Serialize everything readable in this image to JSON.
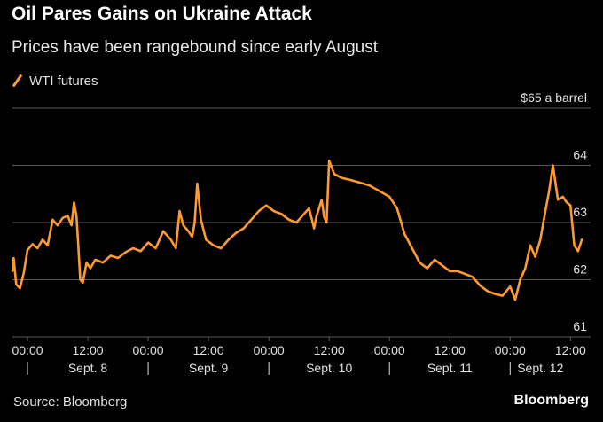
{
  "header": {
    "title": "Oil Pares Gains on Ukraine Attack",
    "subtitle": "Prices have been rangebound since early August"
  },
  "footer": {
    "source": "Source: Bloomberg",
    "brand": "Bloomberg"
  },
  "colors": {
    "line": "#ff9a2e",
    "grid": "#5a5a5a",
    "text": "#e0e0e0",
    "background": "#000000"
  },
  "chart_data": {
    "type": "line",
    "title": "Oil Pares Gains on Ukraine Attack",
    "subtitle": "Prices have been rangebound since early August",
    "ylabel": "",
    "ylim": [
      61,
      65
    ],
    "yticks": [
      {
        "value": 61,
        "label": "61"
      },
      {
        "value": 62,
        "label": "62"
      },
      {
        "value": 63,
        "label": "63"
      },
      {
        "value": 64,
        "label": "64"
      },
      {
        "value": 65,
        "label": "$65 a barrel"
      }
    ],
    "xlim": [
      "Sept. 7 21:00",
      "Sept. 12 16:00"
    ],
    "xticks": [
      {
        "x": "Sept. 8 00:00",
        "label": "00:00"
      },
      {
        "x": "Sept. 8 12:00",
        "label": "12:00"
      },
      {
        "x": "Sept. 9 00:00",
        "label": "00:00"
      },
      {
        "x": "Sept. 9 12:00",
        "label": "12:00"
      },
      {
        "x": "Sept. 10 00:00",
        "label": "00:00"
      },
      {
        "x": "Sept. 10 12:00",
        "label": "12:00"
      },
      {
        "x": "Sept. 11 00:00",
        "label": "00:00"
      },
      {
        "x": "Sept. 11 12:00",
        "label": "12:00"
      },
      {
        "x": "Sept. 12 00:00",
        "label": "00:00"
      },
      {
        "x": "Sept. 12 12:00",
        "label": "12:00"
      }
    ],
    "day_labels": [
      {
        "x": "Sept. 8 12:00",
        "label": "Sept. 8"
      },
      {
        "x": "Sept. 9 12:00",
        "label": "Sept. 9"
      },
      {
        "x": "Sept. 10 12:00",
        "label": "Sept. 10"
      },
      {
        "x": "Sept. 11 12:00",
        "label": "Sept. 11"
      },
      {
        "x": "Sept. 12 06:00",
        "label": "Sept. 12"
      }
    ],
    "day_separators": [
      "Sept. 8 00:00",
      "Sept. 9 00:00",
      "Sept. 10 00:00",
      "Sept. 11 00:00",
      "Sept. 12 00:00"
    ],
    "grid": true,
    "legend": "top-left",
    "series": [
      {
        "name": "WTI futures",
        "x": [
          "Sept. 7 21:00",
          "Sept. 7 21:15",
          "Sept. 7 21:45",
          "Sept. 7 22:30",
          "Sept. 7 23:15",
          "Sept. 8 00:00",
          "Sept. 8 01:00",
          "Sept. 8 02:00",
          "Sept. 8 03:00",
          "Sept. 8 04:00",
          "Sept. 8 05:00",
          "Sept. 8 06:00",
          "Sept. 8 07:00",
          "Sept. 8 08:00",
          "Sept. 8 08:45",
          "Sept. 8 09:15",
          "Sept. 8 09:45",
          "Sept. 8 10:00",
          "Sept. 8 10:30",
          "Sept. 8 11:00",
          "Sept. 8 11:45",
          "Sept. 8 12:30",
          "Sept. 8 13:30",
          "Sept. 8 15:00",
          "Sept. 8 16:30",
          "Sept. 8 18:00",
          "Sept. 8 19:30",
          "Sept. 8 21:00",
          "Sept. 8 22:30",
          "Sept. 9 00:00",
          "Sept. 9 01:30",
          "Sept. 9 03:00",
          "Sept. 9 04:30",
          "Sept. 9 05:30",
          "Sept. 9 06:15",
          "Sept. 9 07:00",
          "Sept. 9 08:00",
          "Sept. 9 08:45",
          "Sept. 9 09:15",
          "Sept. 9 09:45",
          "Sept. 9 10:30",
          "Sept. 9 11:30",
          "Sept. 9 13:00",
          "Sept. 9 14:30",
          "Sept. 9 16:00",
          "Sept. 9 17:30",
          "Sept. 9 19:00",
          "Sept. 9 20:30",
          "Sept. 9 22:00",
          "Sept. 9 23:30",
          "Sept. 10 01:00",
          "Sept. 10 02:30",
          "Sept. 10 04:00",
          "Sept. 10 05:30",
          "Sept. 10 07:00",
          "Sept. 10 08:00",
          "Sept. 10 09:00",
          "Sept. 10 09:30",
          "Sept. 10 10:00",
          "Sept. 10 10:30",
          "Sept. 10 11:00",
          "Sept. 10 11:30",
          "Sept. 10 12:00",
          "Sept. 10 13:00",
          "Sept. 10 14:30",
          "Sept. 10 16:00",
          "Sept. 10 18:00",
          "Sept. 10 20:00",
          "Sept. 10 22:00",
          "Sept. 11 00:00",
          "Sept. 11 01:30",
          "Sept. 11 03:00",
          "Sept. 11 04:30",
          "Sept. 11 06:00",
          "Sept. 11 07:30",
          "Sept. 11 09:00",
          "Sept. 11 10:30",
          "Sept. 11 12:00",
          "Sept. 11 13:30",
          "Sept. 11 15:00",
          "Sept. 11 16:30",
          "Sept. 11 18:00",
          "Sept. 11 19:30",
          "Sept. 11 21:00",
          "Sept. 11 22:30",
          "Sept. 12 00:00",
          "Sept. 12 01:00",
          "Sept. 12 02:00",
          "Sept. 12 03:00",
          "Sept. 12 04:00",
          "Sept. 12 05:00",
          "Sept. 12 06:00",
          "Sept. 12 07:00",
          "Sept. 12 07:45",
          "Sept. 12 08:30",
          "Sept. 12 09:30",
          "Sept. 12 10:30",
          "Sept. 12 11:15",
          "Sept. 12 12:00",
          "Sept. 12 12:45",
          "Sept. 12 13:30",
          "Sept. 12 14:15"
        ],
        "y": [
          62.15,
          62.38,
          61.92,
          61.85,
          62.12,
          62.52,
          62.62,
          62.55,
          62.7,
          62.6,
          63.05,
          62.95,
          63.08,
          63.12,
          62.95,
          63.35,
          63.1,
          62.75,
          62.0,
          61.95,
          62.3,
          62.2,
          62.35,
          62.3,
          62.42,
          62.38,
          62.48,
          62.55,
          62.5,
          62.65,
          62.55,
          62.85,
          62.7,
          62.55,
          63.2,
          62.95,
          62.85,
          62.75,
          63.0,
          63.68,
          63.05,
          62.7,
          62.6,
          62.55,
          62.7,
          62.82,
          62.9,
          63.05,
          63.2,
          63.3,
          63.2,
          63.15,
          63.05,
          63.0,
          63.15,
          63.25,
          62.9,
          63.12,
          63.25,
          63.4,
          63.1,
          63.0,
          64.08,
          63.85,
          63.78,
          63.75,
          63.7,
          63.65,
          63.55,
          63.45,
          63.25,
          62.8,
          62.55,
          62.3,
          62.2,
          62.35,
          62.25,
          62.15,
          62.15,
          62.1,
          62.05,
          61.9,
          61.8,
          61.75,
          61.72,
          61.88,
          61.65,
          62.0,
          62.2,
          62.6,
          62.4,
          62.7,
          63.2,
          63.55,
          64.0,
          63.4,
          63.45,
          63.35,
          63.3,
          62.6,
          62.5,
          62.7
        ]
      }
    ]
  }
}
